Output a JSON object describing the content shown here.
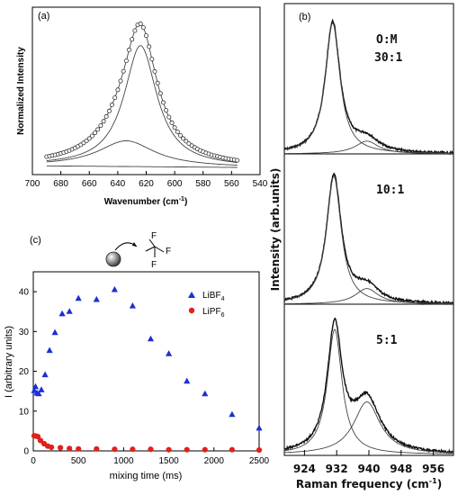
{
  "chart_data": [
    {
      "panel": "(a)",
      "type": "line",
      "xlabel": "Wavenumber (cm",
      "xlabel_sup": "-1",
      "xlabel_end": ")",
      "ylabel": "Normalized Intensity",
      "xlim": [
        700,
        540
      ],
      "x_ticks": [
        "700",
        "680",
        "660",
        "640",
        "620",
        "600",
        "580",
        "560",
        "540"
      ],
      "ylim": [
        0,
        1.0
      ],
      "series": [
        {
          "role": "data",
          "marker": "open-circle",
          "components": [
            {
              "center": 624,
              "amplitude": 0.8,
              "width": 14
            },
            {
              "center": 634,
              "amplitude": 0.17,
              "width": 24
            }
          ]
        },
        {
          "role": "fit-component",
          "center": 624,
          "amplitude": 0.8,
          "width": 14
        },
        {
          "role": "fit-component",
          "center": 634,
          "amplitude": 0.17,
          "width": 24
        }
      ],
      "baseline": [
        0.01,
        0.0
      ],
      "x_range": [
        690,
        556
      ]
    },
    {
      "panel": "(b)",
      "type": "line",
      "xlabel": "Raman frequency (cm",
      "xlabel_sup": "-1",
      "xlabel_end": ")",
      "ylabel": "Intensity (arb.units)",
      "xlim": [
        919,
        961
      ],
      "x_ticks": [
        "924",
        "932",
        "940",
        "948",
        "956"
      ],
      "subpanels": [
        {
          "label": "O:M",
          "label2": "30:1",
          "peaks": [
            {
              "center": 931,
              "amplitude": 0.92,
              "width": 2.2
            },
            {
              "center": 939.5,
              "amplitude": 0.09,
              "width": 3.5
            }
          ]
        },
        {
          "label": "10:1",
          "label2": "",
          "peaks": [
            {
              "center": 931.3,
              "amplitude": 0.9,
              "width": 2.2
            },
            {
              "center": 939.5,
              "amplitude": 0.11,
              "width": 3.5
            }
          ]
        },
        {
          "label": "5:1",
          "label2": "",
          "peaks": [
            {
              "center": 931.5,
              "amplitude": 0.88,
              "width": 2.2
            },
            {
              "center": 939.5,
              "amplitude": 0.37,
              "width": 4.0
            }
          ]
        }
      ]
    },
    {
      "panel": "(c)",
      "type": "scatter",
      "xlabel": "mixing time (ms)",
      "ylabel": "I (arbitrary units)",
      "xlim": [
        0,
        2500
      ],
      "ylim": [
        0,
        45
      ],
      "x_ticks": [
        "0",
        "500",
        "1000",
        "1500",
        "2000",
        "2500"
      ],
      "y_ticks": [
        "0",
        "10",
        "20",
        "30",
        "40"
      ],
      "series": [
        {
          "name": "LiBF",
          "name_sub": "4",
          "marker": "triangle",
          "color": "#1a2fd6",
          "x": [
            10,
            25,
            40,
            60,
            90,
            130,
            180,
            240,
            320,
            400,
            500,
            700,
            900,
            1100,
            1300,
            1500,
            1700,
            1900,
            2200,
            2500
          ],
          "y": [
            15.2,
            16.2,
            14.6,
            14.4,
            15.4,
            19.2,
            25.3,
            29.8,
            34.5,
            35.1,
            38.4,
            38.1,
            40.6,
            36.5,
            28.2,
            24.5,
            17.6,
            14.4,
            9.2,
            5.8
          ]
        },
        {
          "name": "LiPF",
          "name_sub": "6",
          "marker": "circle",
          "color": "#e0201a",
          "x": [
            10,
            30,
            50,
            80,
            120,
            160,
            200,
            300,
            400,
            500,
            700,
            900,
            1100,
            1300,
            1500,
            1700,
            1900,
            2200,
            2500
          ],
          "y": [
            3.8,
            3.7,
            3.6,
            2.6,
            1.8,
            1.2,
            0.9,
            0.8,
            0.6,
            0.5,
            0.5,
            0.4,
            0.4,
            0.4,
            0.3,
            0.3,
            0.3,
            0.3,
            0.2
          ]
        }
      ],
      "legend": "top-right",
      "inset_labels": [
        "F",
        "F",
        "F"
      ]
    }
  ]
}
